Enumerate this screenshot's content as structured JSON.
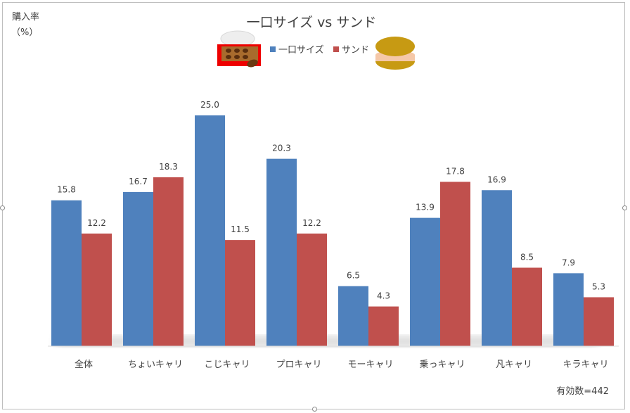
{
  "chart_data": {
    "type": "bar",
    "title": "一口サイズ vs サンド",
    "ylabel": "購入率",
    "ylabel_unit": "（%）",
    "categories": [
      "全体",
      "ちょいキャリ",
      "こじキャリ",
      "プロキャリ",
      "モーキャリ",
      "乗っキャリ",
      "凡キャリ",
      "キラキャリ"
    ],
    "series": [
      {
        "name": "一口サイズ",
        "color": "#4f81bd",
        "values": [
          15.8,
          16.7,
          25.0,
          20.3,
          6.5,
          13.9,
          16.9,
          7.9
        ]
      },
      {
        "name": "サンド",
        "color": "#c0504d",
        "values": [
          12.2,
          18.3,
          11.5,
          12.2,
          4.3,
          17.8,
          8.5,
          5.3
        ]
      }
    ],
    "ylim": [
      0,
      25
    ],
    "grid": false,
    "legend_position": "top",
    "note": "有効数=442"
  },
  "icons": {
    "left": "chocolate-box-icon",
    "right": "sandwich-cookie-icon"
  }
}
